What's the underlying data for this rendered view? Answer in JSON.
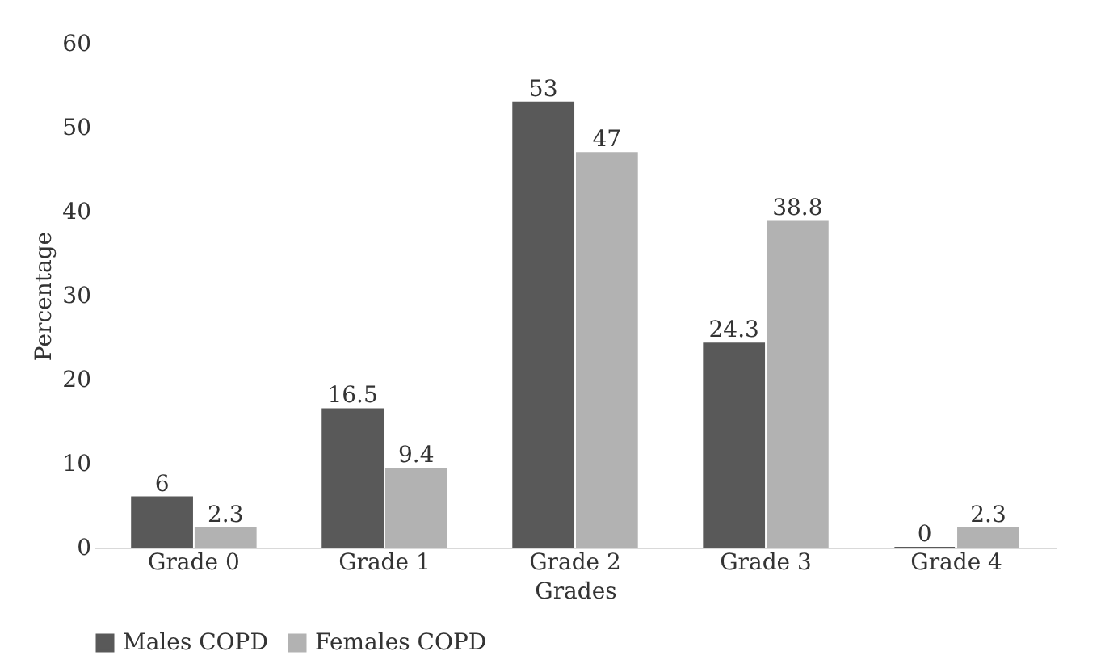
{
  "chart_data": {
    "type": "bar",
    "xlabel": "Grades",
    "ylabel": "Percentage",
    "categories": [
      "Grade 0",
      "Grade 1",
      "Grade 2",
      "Grade 3",
      "Grade 4"
    ],
    "series": [
      {
        "name": "Males COPD",
        "color": "#595959",
        "values": [
          6,
          16.5,
          53,
          24.3,
          0
        ]
      },
      {
        "name": "Females COPD",
        "color": "#b2b2b2",
        "values": [
          2.3,
          9.4,
          47,
          38.8,
          2.3
        ]
      }
    ],
    "ylim": [
      0,
      60
    ],
    "yticks": [
      0,
      10,
      20,
      30,
      40,
      50,
      60
    ],
    "grid": false,
    "legend": "bottom",
    "data_labels": true
  }
}
